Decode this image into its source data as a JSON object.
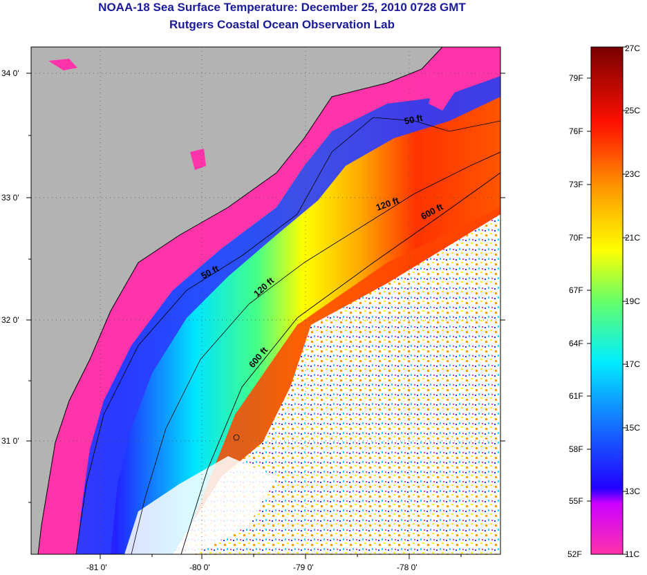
{
  "title": "NOAA-18 Sea Surface Temperature:  December 25, 2010 0728 GMT",
  "subtitle": "Rutgers Coastal Ocean Observation Lab",
  "axes": {
    "lat_ticks": [
      "34 0'",
      "33 0'",
      "32 0'",
      "31 0'"
    ],
    "lon_ticks": [
      "-81 0'",
      "-80 0'",
      "-79 0'",
      "-78 0'"
    ]
  },
  "contours": {
    "c50_a": "50 ft",
    "c50_b": "50 ft",
    "c120_a": "120 ft",
    "c120_b": "120 ft",
    "c600_a": "600 ft",
    "c600_b": "600 ft"
  },
  "colorbar": {
    "fahrenheit": [
      "79F",
      "76F",
      "73F",
      "70F",
      "67F",
      "64F",
      "61F",
      "58F",
      "55F",
      "52F"
    ],
    "celsius": [
      "27C",
      "25C",
      "23C",
      "21C",
      "19C",
      "17C",
      "15C",
      "13C",
      "11C"
    ]
  },
  "colors": {
    "land": "#b3b3b3",
    "cold": "#ff33aa",
    "title": "#1a1a9a"
  }
}
